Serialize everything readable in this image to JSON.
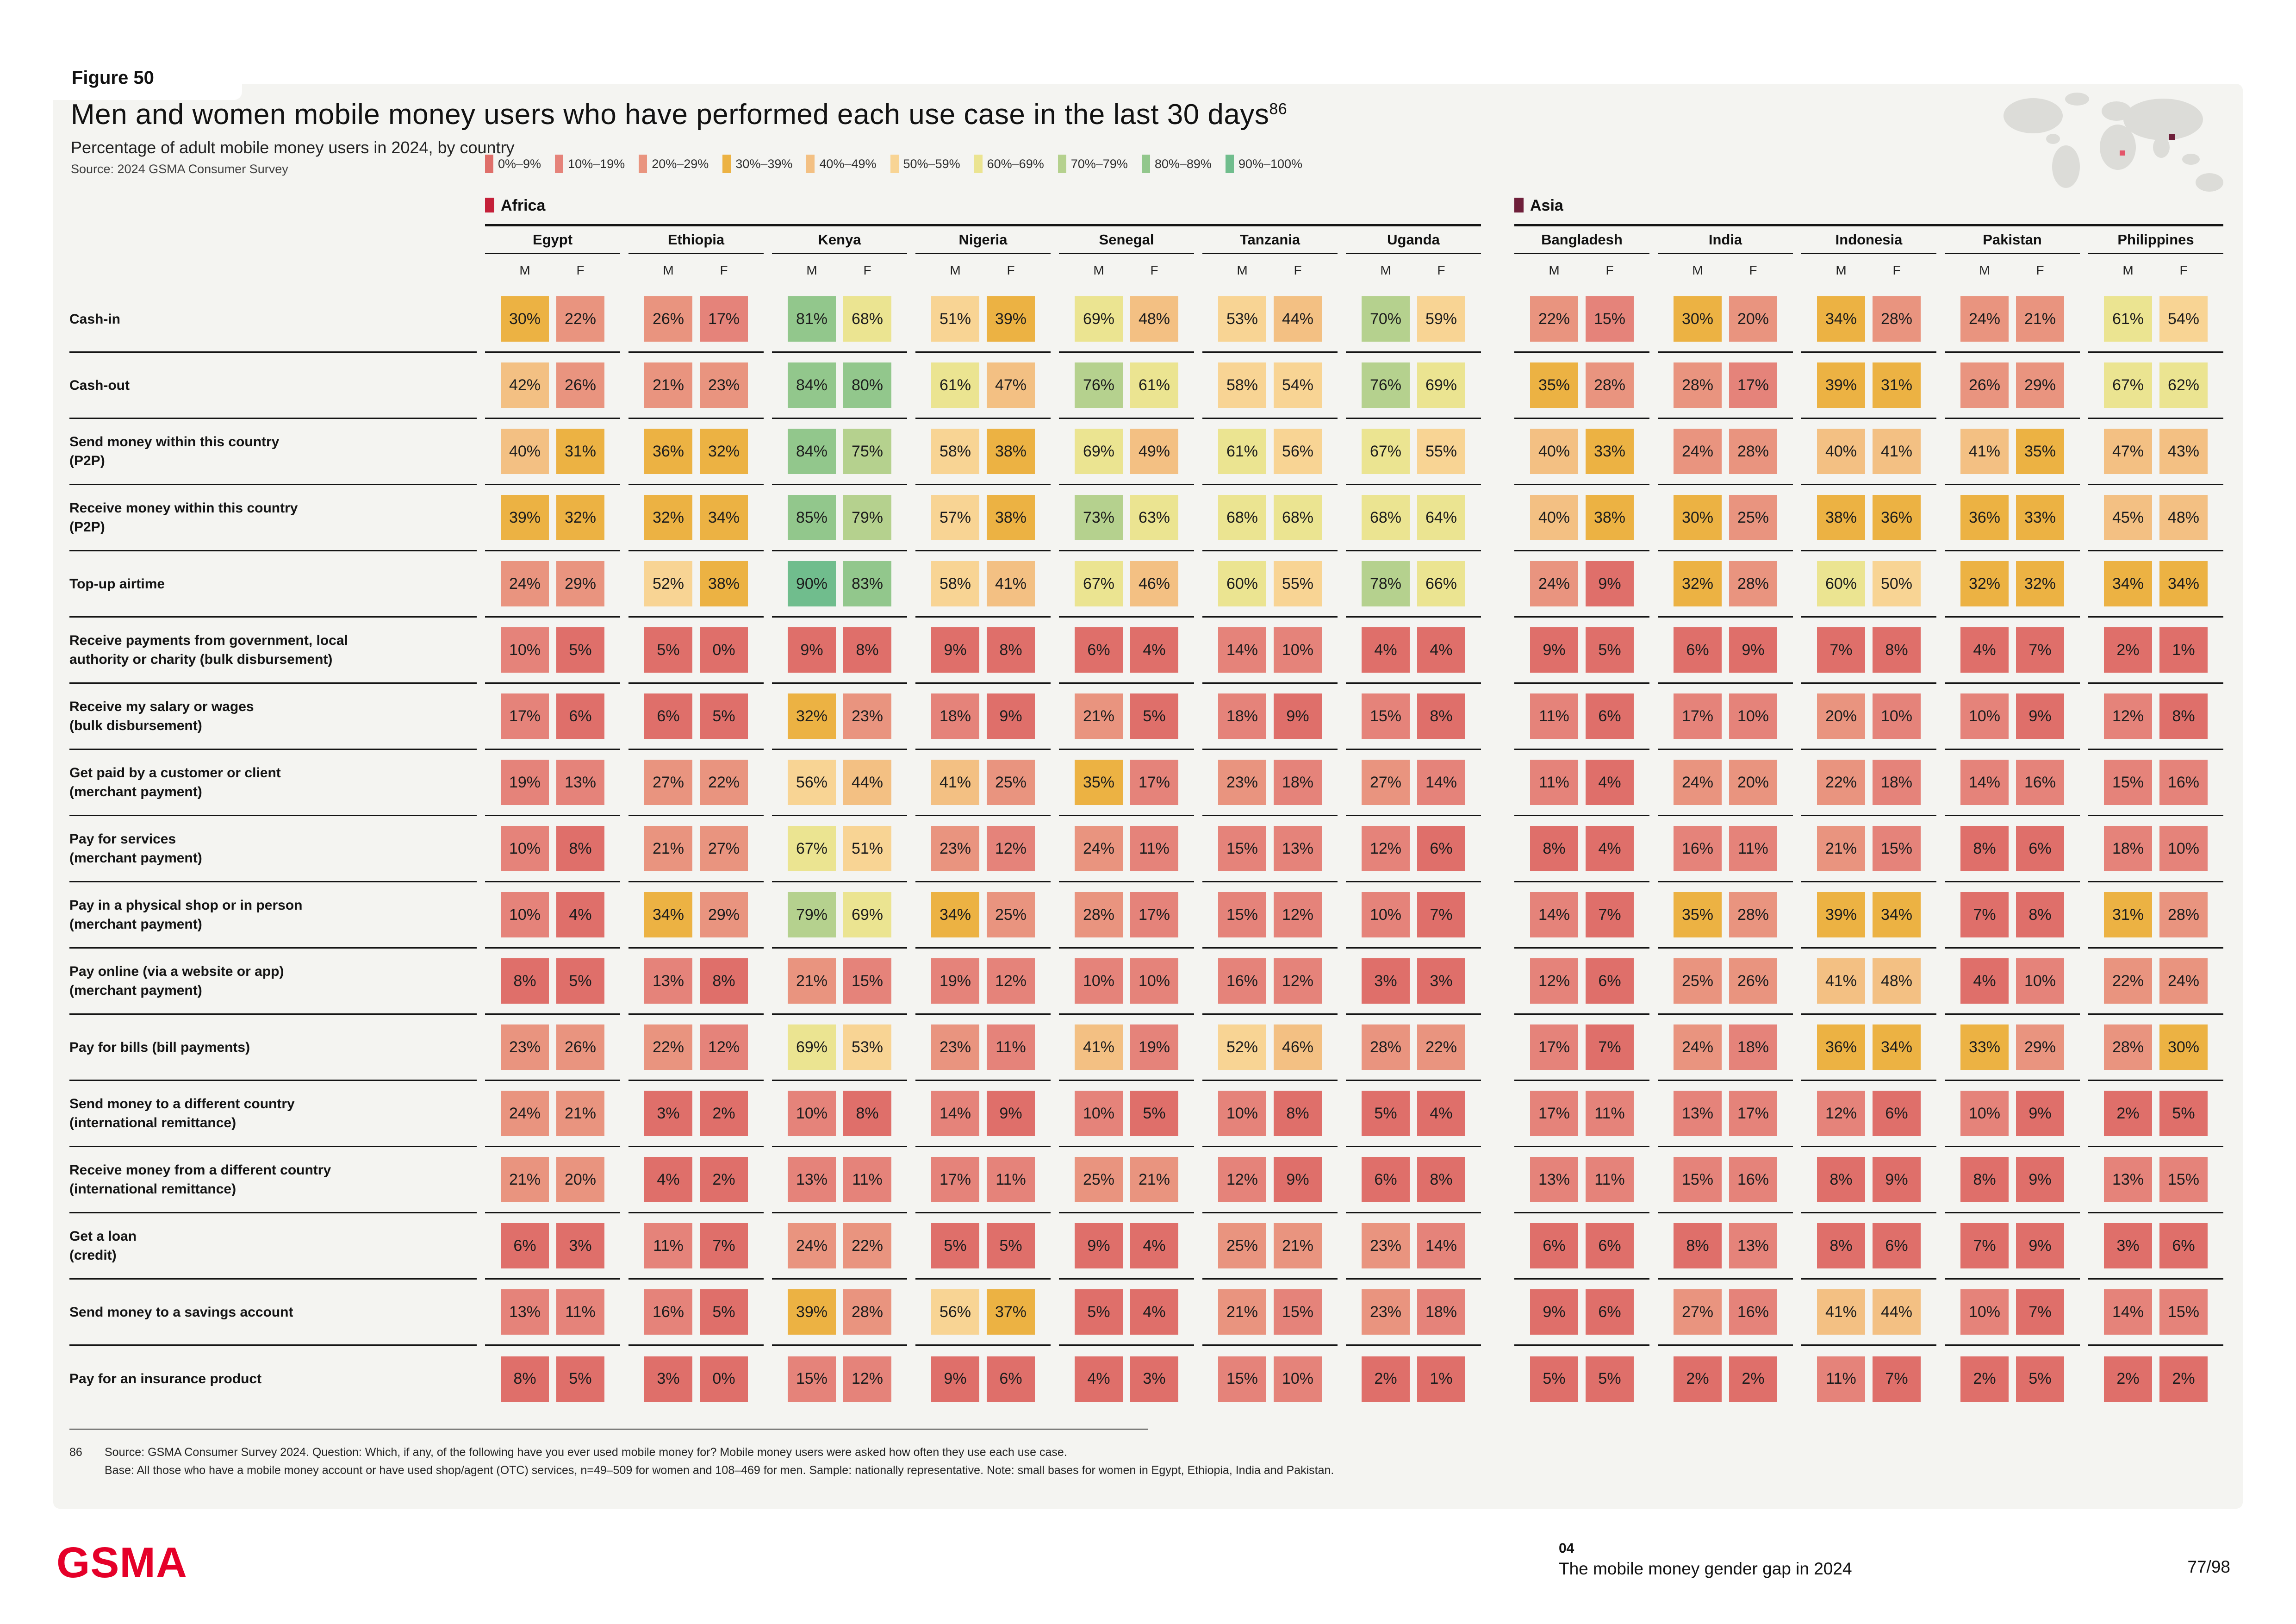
{
  "header": {
    "figure_tag": "Figure 50",
    "title": "Men and women mobile money users who have performed each use case in the last 30 days",
    "title_sup": "86",
    "subtitle": "Percentage of adult mobile money users in 2024, by country",
    "source": "Source: 2024 GSMA Consumer Survey"
  },
  "chart_data": {
    "type": "heatmap",
    "unit": "%",
    "genders": [
      "M",
      "F"
    ],
    "regions": [
      {
        "name": "Africa",
        "marker_color": "#c42039",
        "countries": [
          "Egypt",
          "Ethiopia",
          "Kenya",
          "Nigeria",
          "Senegal",
          "Tanzania",
          "Uganda"
        ]
      },
      {
        "name": "Asia",
        "marker_color": "#6e1f3a",
        "countries": [
          "Bangladesh",
          "India",
          "Indonesia",
          "Pakistan",
          "Philippines"
        ]
      }
    ],
    "country_order": [
      "Egypt",
      "Ethiopia",
      "Kenya",
      "Nigeria",
      "Senegal",
      "Tanzania",
      "Uganda",
      "Bangladesh",
      "India",
      "Indonesia",
      "Pakistan",
      "Philippines"
    ],
    "buckets": [
      {
        "label": "0%–9%",
        "min": 0,
        "max": 9,
        "color": "#df6f6a"
      },
      {
        "label": "10%–19%",
        "min": 10,
        "max": 19,
        "color": "#e5837a"
      },
      {
        "label": "20%–29%",
        "min": 20,
        "max": 29,
        "color": "#e9947f"
      },
      {
        "label": "30%–39%",
        "min": 30,
        "max": 39,
        "color": "#ecb243"
      },
      {
        "label": "40%–49%",
        "min": 40,
        "max": 49,
        "color": "#f3c083"
      },
      {
        "label": "50%–59%",
        "min": 50,
        "max": 59,
        "color": "#f8d494"
      },
      {
        "label": "60%–69%",
        "min": 60,
        "max": 69,
        "color": "#ebe491"
      },
      {
        "label": "70%–79%",
        "min": 70,
        "max": 79,
        "color": "#b5d18e"
      },
      {
        "label": "80%–89%",
        "min": 80,
        "max": 89,
        "color": "#92c78c"
      },
      {
        "label": "90%–100%",
        "min": 90,
        "max": 100,
        "color": "#70bd8d"
      }
    ],
    "rows": [
      {
        "label": "Cash-in",
        "sublabel": "",
        "values": [
          [
            30,
            22
          ],
          [
            26,
            17
          ],
          [
            81,
            68
          ],
          [
            51,
            39
          ],
          [
            69,
            48
          ],
          [
            53,
            44
          ],
          [
            70,
            59
          ],
          [
            22,
            15
          ],
          [
            30,
            20
          ],
          [
            34,
            28
          ],
          [
            24,
            21
          ],
          [
            61,
            54
          ]
        ]
      },
      {
        "label": "Cash-out",
        "sublabel": "",
        "values": [
          [
            42,
            26
          ],
          [
            21,
            23
          ],
          [
            84,
            80
          ],
          [
            61,
            47
          ],
          [
            76,
            61
          ],
          [
            58,
            54
          ],
          [
            76,
            69
          ],
          [
            35,
            28
          ],
          [
            28,
            17
          ],
          [
            39,
            31
          ],
          [
            26,
            29
          ],
          [
            67,
            62
          ]
        ]
      },
      {
        "label": "Send money within this country",
        "sublabel": "(P2P)",
        "values": [
          [
            40,
            31
          ],
          [
            36,
            32
          ],
          [
            84,
            75
          ],
          [
            58,
            38
          ],
          [
            69,
            49
          ],
          [
            61,
            56
          ],
          [
            67,
            55
          ],
          [
            40,
            33
          ],
          [
            24,
            28
          ],
          [
            40,
            41
          ],
          [
            41,
            35
          ],
          [
            47,
            43
          ]
        ]
      },
      {
        "label": "Receive money within this country",
        "sublabel": "(P2P)",
        "values": [
          [
            39,
            32
          ],
          [
            32,
            34
          ],
          [
            85,
            79
          ],
          [
            57,
            38
          ],
          [
            73,
            63
          ],
          [
            68,
            68
          ],
          [
            68,
            64
          ],
          [
            40,
            38
          ],
          [
            30,
            25
          ],
          [
            38,
            36
          ],
          [
            36,
            33
          ],
          [
            45,
            48
          ]
        ]
      },
      {
        "label": "Top-up airtime",
        "sublabel": "",
        "values": [
          [
            24,
            29
          ],
          [
            52,
            38
          ],
          [
            90,
            83
          ],
          [
            58,
            41
          ],
          [
            67,
            46
          ],
          [
            60,
            55
          ],
          [
            78,
            66
          ],
          [
            24,
            9
          ],
          [
            32,
            28
          ],
          [
            60,
            50
          ],
          [
            32,
            32
          ],
          [
            34,
            34
          ]
        ]
      },
      {
        "label": "Receive payments from government, local",
        "sublabel": "authority or charity (bulk disbursement)",
        "values": [
          [
            10,
            5
          ],
          [
            5,
            0
          ],
          [
            9,
            8
          ],
          [
            9,
            8
          ],
          [
            6,
            4
          ],
          [
            14,
            10
          ],
          [
            4,
            4
          ],
          [
            9,
            5
          ],
          [
            6,
            9
          ],
          [
            7,
            8
          ],
          [
            4,
            7
          ],
          [
            2,
            1
          ]
        ]
      },
      {
        "label": "Receive my salary or wages",
        "sublabel": "(bulk disbursement)",
        "values": [
          [
            17,
            6
          ],
          [
            6,
            5
          ],
          [
            32,
            23
          ],
          [
            18,
            9
          ],
          [
            21,
            5
          ],
          [
            18,
            9
          ],
          [
            15,
            8
          ],
          [
            11,
            6
          ],
          [
            17,
            10
          ],
          [
            20,
            10
          ],
          [
            10,
            9
          ],
          [
            12,
            8
          ]
        ]
      },
      {
        "label": "Get paid by a customer or client",
        "sublabel": "(merchant payment)",
        "values": [
          [
            19,
            13
          ],
          [
            27,
            22
          ],
          [
            56,
            44
          ],
          [
            41,
            25
          ],
          [
            35,
            17
          ],
          [
            23,
            18
          ],
          [
            27,
            14
          ],
          [
            11,
            4
          ],
          [
            24,
            20
          ],
          [
            22,
            18
          ],
          [
            14,
            16
          ],
          [
            15,
            16
          ]
        ]
      },
      {
        "label": "Pay for services",
        "sublabel": "(merchant payment)",
        "values": [
          [
            10,
            8
          ],
          [
            21,
            27
          ],
          [
            67,
            51
          ],
          [
            23,
            12
          ],
          [
            24,
            11
          ],
          [
            15,
            13
          ],
          [
            12,
            6
          ],
          [
            8,
            4
          ],
          [
            16,
            11
          ],
          [
            21,
            15
          ],
          [
            8,
            6
          ],
          [
            18,
            10
          ]
        ]
      },
      {
        "label": "Pay in a physical shop or in person",
        "sublabel": "(merchant payment)",
        "values": [
          [
            10,
            4
          ],
          [
            34,
            29
          ],
          [
            79,
            69
          ],
          [
            34,
            25
          ],
          [
            28,
            17
          ],
          [
            15,
            12
          ],
          [
            10,
            7
          ],
          [
            14,
            7
          ],
          [
            35,
            28
          ],
          [
            39,
            34
          ],
          [
            7,
            8
          ],
          [
            31,
            28
          ]
        ]
      },
      {
        "label": "Pay online (via a website or app)",
        "sublabel": "(merchant payment)",
        "values": [
          [
            8,
            5
          ],
          [
            13,
            8
          ],
          [
            21,
            15
          ],
          [
            19,
            12
          ],
          [
            10,
            10
          ],
          [
            16,
            12
          ],
          [
            3,
            3
          ],
          [
            12,
            6
          ],
          [
            25,
            26
          ],
          [
            41,
            48
          ],
          [
            4,
            10
          ],
          [
            22,
            24
          ]
        ]
      },
      {
        "label": "Pay for bills (bill payments)",
        "sublabel": "",
        "values": [
          [
            23,
            26
          ],
          [
            22,
            12
          ],
          [
            69,
            53
          ],
          [
            23,
            11
          ],
          [
            41,
            19
          ],
          [
            52,
            46
          ],
          [
            28,
            22
          ],
          [
            17,
            7
          ],
          [
            24,
            18
          ],
          [
            36,
            34
          ],
          [
            33,
            29
          ],
          [
            28,
            30
          ]
        ]
      },
      {
        "label": "Send money to a different country",
        "sublabel": "(international remittance)",
        "values": [
          [
            24,
            21
          ],
          [
            3,
            2
          ],
          [
            10,
            8
          ],
          [
            14,
            9
          ],
          [
            10,
            5
          ],
          [
            10,
            8
          ],
          [
            5,
            4
          ],
          [
            17,
            11
          ],
          [
            13,
            17
          ],
          [
            12,
            6
          ],
          [
            10,
            9
          ],
          [
            2,
            5
          ]
        ]
      },
      {
        "label": "Receive money from a different country",
        "sublabel": "(international remittance)",
        "values": [
          [
            21,
            20
          ],
          [
            4,
            2
          ],
          [
            13,
            11
          ],
          [
            17,
            11
          ],
          [
            25,
            21
          ],
          [
            12,
            9
          ],
          [
            6,
            8
          ],
          [
            13,
            11
          ],
          [
            15,
            16
          ],
          [
            8,
            9
          ],
          [
            8,
            9
          ],
          [
            13,
            15
          ]
        ]
      },
      {
        "label": "Get a loan",
        "sublabel": "(credit)",
        "values": [
          [
            6,
            3
          ],
          [
            11,
            7
          ],
          [
            24,
            22
          ],
          [
            5,
            5
          ],
          [
            9,
            4
          ],
          [
            25,
            21
          ],
          [
            23,
            14
          ],
          [
            6,
            6
          ],
          [
            8,
            13
          ],
          [
            8,
            6
          ],
          [
            7,
            9
          ],
          [
            3,
            6
          ]
        ]
      },
      {
        "label": "Send money to a savings account",
        "sublabel": "",
        "values": [
          [
            13,
            11
          ],
          [
            16,
            5
          ],
          [
            39,
            28
          ],
          [
            56,
            37
          ],
          [
            5,
            4
          ],
          [
            21,
            15
          ],
          [
            23,
            18
          ],
          [
            9,
            6
          ],
          [
            27,
            16
          ],
          [
            41,
            44
          ],
          [
            10,
            7
          ],
          [
            14,
            15
          ]
        ]
      },
      {
        "label": "Pay for an insurance product",
        "sublabel": "",
        "values": [
          [
            8,
            5
          ],
          [
            3,
            0
          ],
          [
            15,
            12
          ],
          [
            9,
            6
          ],
          [
            4,
            3
          ],
          [
            15,
            10
          ],
          [
            2,
            1
          ],
          [
            5,
            5
          ],
          [
            2,
            2
          ],
          [
            11,
            7
          ],
          [
            2,
            5
          ],
          [
            2,
            2
          ]
        ]
      }
    ]
  },
  "footnote": {
    "marker": "86",
    "line1": "Source: GSMA Consumer Survey 2024. Question: Which, if any, of the following have you ever used mobile money for? Mobile money users were asked how often they use each use case.",
    "line2": "Base: All those who have a mobile money account or have used shop/agent (OTC) services, n=49–509 for women and 108–469 for men. Sample: nationally representative. Note: small bases for women in Egypt, Ethiopia, India and Pakistan."
  },
  "footer": {
    "logo": "GSMA",
    "chapter_number": "04",
    "chapter_title": "The mobile money gender gap in 2024",
    "page": "77/98"
  }
}
